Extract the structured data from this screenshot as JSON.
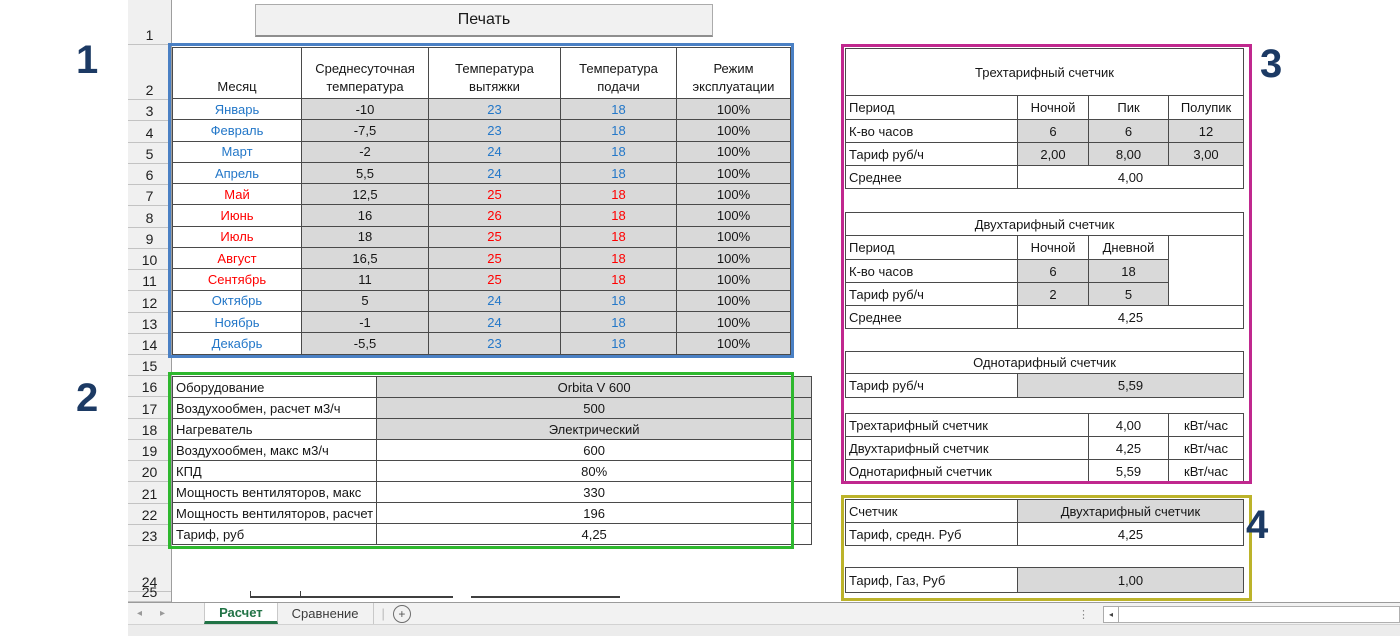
{
  "toolbar": {
    "print_label": "Печать"
  },
  "annotations": {
    "n1": "1",
    "n2": "2",
    "n3": "3",
    "n4": "4"
  },
  "colors": {
    "blue_month": "#2377C8",
    "red_month": "#FF0000",
    "cell_gray": "#D9D9D9",
    "table1_border": "#4A80C4",
    "table2_border": "#2EB82E",
    "table3_border": "#C0288E",
    "table4_border": "#BCB32A",
    "annotation_navy": "#1C3A64",
    "active_tab_green": "#217346"
  },
  "row_headers": [
    "1",
    "2",
    "3",
    "4",
    "5",
    "6",
    "7",
    "8",
    "9",
    "10",
    "11",
    "12",
    "13",
    "14",
    "15",
    "16",
    "17",
    "18",
    "19",
    "20",
    "21",
    "22",
    "23",
    "24",
    "25"
  ],
  "table1": {
    "headers": [
      "Месяц",
      "Среднесуточная температура",
      "Температура вытяжки",
      "Температура подачи",
      "Режим эксплуатации"
    ],
    "rows": [
      {
        "month": "Январь",
        "avg": "-10",
        "exhaust": "23",
        "supply": "18",
        "mode": "100%",
        "color": "blue"
      },
      {
        "month": "Февраль",
        "avg": "-7,5",
        "exhaust": "23",
        "supply": "18",
        "mode": "100%",
        "color": "blue"
      },
      {
        "month": "Март",
        "avg": "-2",
        "exhaust": "24",
        "supply": "18",
        "mode": "100%",
        "color": "blue"
      },
      {
        "month": "Апрель",
        "avg": "5,5",
        "exhaust": "24",
        "supply": "18",
        "mode": "100%",
        "color": "blue"
      },
      {
        "month": "Май",
        "avg": "12,5",
        "exhaust": "25",
        "supply": "18",
        "mode": "100%",
        "color": "red"
      },
      {
        "month": "Июнь",
        "avg": "16",
        "exhaust": "26",
        "supply": "18",
        "mode": "100%",
        "color": "red"
      },
      {
        "month": "Июль",
        "avg": "18",
        "exhaust": "25",
        "supply": "18",
        "mode": "100%",
        "color": "red"
      },
      {
        "month": "Август",
        "avg": "16,5",
        "exhaust": "25",
        "supply": "18",
        "mode": "100%",
        "color": "red"
      },
      {
        "month": "Сентябрь",
        "avg": "11",
        "exhaust": "25",
        "supply": "18",
        "mode": "100%",
        "color": "red"
      },
      {
        "month": "Октябрь",
        "avg": "5",
        "exhaust": "24",
        "supply": "18",
        "mode": "100%",
        "color": "blue"
      },
      {
        "month": "Ноябрь",
        "avg": "-1",
        "exhaust": "24",
        "supply": "18",
        "mode": "100%",
        "color": "blue"
      },
      {
        "month": "Декабрь",
        "avg": "-5,5",
        "exhaust": "23",
        "supply": "18",
        "mode": "100%",
        "color": "blue"
      }
    ]
  },
  "table2": {
    "rows": [
      {
        "label": "Оборудование",
        "value": "Orbita V 600",
        "gray": true
      },
      {
        "label": "Воздухообмен, расчет м3/ч",
        "value": "500",
        "gray": true
      },
      {
        "label": "Нагреватель",
        "value": "Электрический",
        "gray": true
      },
      {
        "label": "Воздухообмен, макс м3/ч",
        "value": "600",
        "gray": false
      },
      {
        "label": "КПД",
        "value": "80%",
        "gray": false
      },
      {
        "label": "Мощность вентиляторов, макс",
        "value": "330",
        "gray": false
      },
      {
        "label": "Мощность вентиляторов, расчет",
        "value": "196",
        "gray": false
      },
      {
        "label": "Тариф, руб",
        "value": "4,25",
        "gray": false
      }
    ]
  },
  "table3": {
    "three_tariff": {
      "title": "Трехтарифный счетчик",
      "period_label": "Период",
      "columns": [
        "Ночной",
        "Пик",
        "Полупик"
      ],
      "hours_label": "К-во часов",
      "hours": [
        "6",
        "6",
        "12"
      ],
      "rate_label": "Тариф руб/ч",
      "rates": [
        "2,00",
        "8,00",
        "3,00"
      ],
      "avg_label": "Среднее",
      "avg": "4,00"
    },
    "two_tariff": {
      "title": "Двухтарифный счетчик",
      "period_label": "Период",
      "columns": [
        "Ночной",
        "Дневной"
      ],
      "hours_label": "К-во часов",
      "hours": [
        "6",
        "18"
      ],
      "rate_label": "Тариф руб/ч",
      "rates": [
        "2",
        "5"
      ],
      "avg_label": "Среднее",
      "avg": "4,25"
    },
    "one_tariff": {
      "title": "Однотарифный счетчик",
      "rate_label": "Тариф руб/ч",
      "rate": "5,59"
    },
    "summary": [
      {
        "label": "Трехтарифный счетчик",
        "value": "4,00",
        "unit": "кВт/час"
      },
      {
        "label": "Двухтарифный счетчик",
        "value": "4,25",
        "unit": "кВт/час"
      },
      {
        "label": "Однотарифный счетчик",
        "value": "5,59",
        "unit": "кВт/час"
      }
    ]
  },
  "table4": {
    "rows_top": [
      {
        "label": "Счетчик",
        "value": "Двухтарифный счетчик",
        "gray": true
      },
      {
        "label": "Тариф, средн. Руб",
        "value": "4,25",
        "gray": false
      }
    ],
    "rows_bottom": [
      {
        "label": "Тариф, Газ, Руб",
        "value": "1,00",
        "gray": true
      }
    ]
  },
  "sheet_tabs": {
    "active": "Расчет",
    "inactive": "Сравнение"
  },
  "icons": {
    "tab_nav_left": "◂",
    "tab_nav_right": "▸",
    "add_sheet": "+",
    "scroll_left": "◂",
    "grip": "⋮"
  }
}
